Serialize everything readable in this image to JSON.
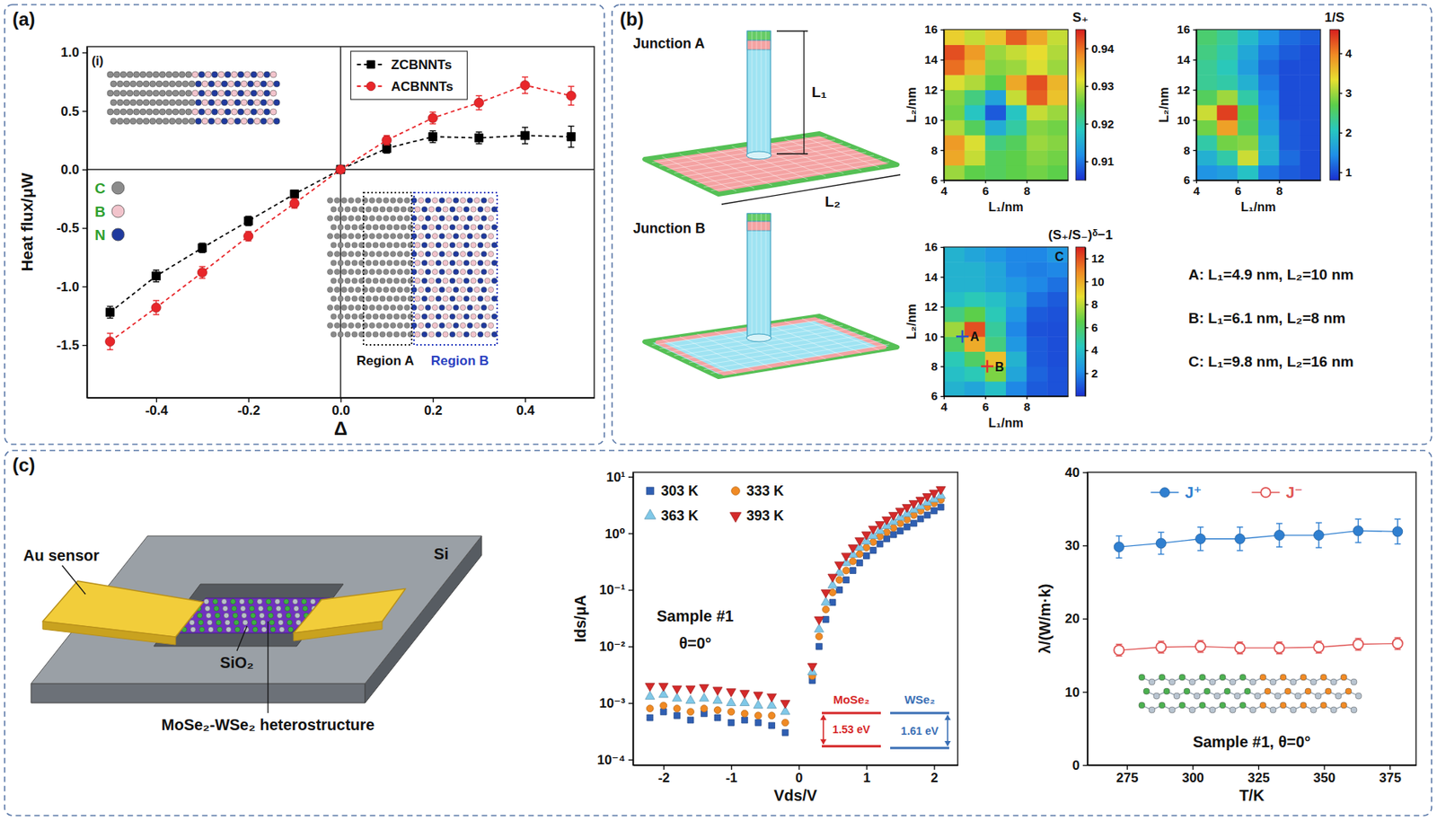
{
  "chart_data": [
    {
      "type": "line",
      "x_label": "Δ",
      "y_label": "Heat flux/μW",
      "x": [
        -0.5,
        -0.4,
        -0.3,
        -0.2,
        -0.1,
        0,
        0.1,
        0.2,
        0.3,
        0.4,
        0.5
      ],
      "series": [
        {
          "name": "ZCBNNTs",
          "color": "#000000",
          "marker": "square",
          "line_style": "dashed",
          "values": [
            -1.22,
            -0.91,
            -0.67,
            -0.44,
            -0.21,
            0,
            0.18,
            0.28,
            0.27,
            0.29,
            0.28
          ],
          "errors": [
            0.05,
            0.05,
            0.04,
            0.04,
            0.03,
            0.02,
            0.04,
            0.05,
            0.05,
            0.07,
            0.09
          ]
        },
        {
          "name": "ACBNNTs",
          "color": "#e8262a",
          "marker": "circle",
          "line_style": "dashed",
          "values": [
            -1.47,
            -1.18,
            -0.88,
            -0.57,
            -0.29,
            0,
            0.25,
            0.44,
            0.57,
            0.72,
            0.63
          ],
          "errors": [
            0.07,
            0.06,
            0.05,
            0.04,
            0.04,
            0.02,
            0.04,
            0.05,
            0.06,
            0.07,
            0.08
          ]
        }
      ],
      "xlim": [
        -0.55,
        0.55
      ],
      "ylim": [
        -1.95,
        1.05
      ],
      "xticks": [
        -0.4,
        -0.2,
        {
          "value": 0,
          "label": "0.0"
        },
        0.2,
        0.4
      ],
      "yticks": [
        -1.5,
        {
          "value": -1,
          "label": "-1.0"
        },
        -0.5,
        {
          "value": 0,
          "label": "0.0"
        },
        0.5,
        {
          "value": 1,
          "label": "1.0"
        }
      ],
      "reference_lines": {
        "x": 0,
        "y": 0
      },
      "legend": "top",
      "inset_labels": {
        "panel": "(i)",
        "atoms": [
          {
            "label": "C",
            "color": "#8c8c8c"
          },
          {
            "label": "B",
            "color": "#f2c4cc"
          },
          {
            "label": "N",
            "color": "#1f3a9e"
          }
        ],
        "regions": [
          "Region A",
          "Region B"
        ]
      }
    },
    {
      "type": "heatmap",
      "x_label": "L₁/nm",
      "y_label": "L₂/nm",
      "x_edges": [
        4,
        5,
        6,
        7,
        8,
        9,
        10
      ],
      "y_edges": [
        6,
        7,
        8,
        9,
        10,
        11,
        12,
        13,
        14,
        15,
        16
      ],
      "cells": [
        [
          0.928,
          0.925,
          0.924,
          0.925,
          0.926,
          0.925
        ],
        [
          0.936,
          0.93,
          0.924,
          0.925,
          0.927,
          0.926
        ],
        [
          0.937,
          0.931,
          0.922,
          0.924,
          0.928,
          0.927
        ],
        [
          0.929,
          0.924,
          0.915,
          0.92,
          0.927,
          0.926
        ],
        [
          0.926,
          0.918,
          0.908,
          0.918,
          0.93,
          0.928
        ],
        [
          0.927,
          0.922,
          0.914,
          0.93,
          0.941,
          0.934
        ],
        [
          0.931,
          0.929,
          0.925,
          0.936,
          0.942,
          0.935
        ],
        [
          0.94,
          0.935,
          0.927,
          0.928,
          0.931,
          0.928
        ],
        [
          0.942,
          0.937,
          0.928,
          0.93,
          0.932,
          0.929
        ],
        [
          0.933,
          0.93,
          0.934,
          0.941,
          0.936,
          0.93
        ]
      ],
      "xlim": [
        4,
        10
      ],
      "ylim": [
        6,
        16
      ],
      "xticks": [
        4,
        6,
        8
      ],
      "yticks": [
        6,
        8,
        10,
        12,
        14,
        16
      ],
      "colorbar": {
        "title": "S₊",
        "range": [
          0.905,
          0.945
        ],
        "ticks": [
          0.91,
          0.92,
          0.93,
          0.94
        ]
      }
    },
    {
      "type": "heatmap",
      "x_label": "L₁/nm",
      "y_label": "L₂/nm",
      "x_edges": [
        4,
        5,
        6,
        7,
        8,
        9,
        10
      ],
      "y_edges": [
        6,
        7,
        8,
        9,
        10,
        11,
        12,
        13,
        14,
        15,
        16
      ],
      "cells": [
        [
          1.5,
          1.6,
          2.0,
          1.3,
          1.1,
          1.0
        ],
        [
          1.8,
          2.2,
          3.2,
          1.8,
          1.2,
          1.0
        ],
        [
          2.2,
          2.8,
          2.9,
          1.8,
          1.1,
          1.0
        ],
        [
          2.8,
          3.8,
          2.6,
          1.6,
          1.1,
          1.0
        ],
        [
          3.2,
          4.4,
          2.7,
          1.5,
          1.0,
          1.0
        ],
        [
          2.6,
          3.0,
          2.2,
          1.4,
          1.0,
          1.0
        ],
        [
          2.3,
          2.2,
          1.8,
          1.3,
          1.0,
          1.0
        ],
        [
          2.3,
          2.1,
          1.6,
          1.2,
          1.0,
          1.0
        ],
        [
          2.4,
          2.2,
          1.7,
          1.3,
          1.1,
          1.0
        ],
        [
          2.5,
          2.3,
          1.9,
          1.5,
          1.2,
          1.1
        ]
      ],
      "xlim": [
        4,
        10
      ],
      "ylim": [
        6,
        16
      ],
      "xticks": [
        4,
        6,
        8
      ],
      "yticks": [
        6,
        8,
        10,
        12,
        14,
        16
      ],
      "colorbar": {
        "title": "1/S",
        "range": [
          0.8,
          4.6
        ],
        "ticks": [
          1,
          2,
          3,
          4
        ]
      }
    },
    {
      "type": "heatmap",
      "x_label": "L₁/nm",
      "y_label": "L₂/nm",
      "x_edges": [
        4,
        5,
        6,
        7,
        8,
        9,
        10
      ],
      "y_edges": [
        6,
        7,
        8,
        9,
        10,
        11,
        12,
        13,
        14,
        15,
        16
      ],
      "cells": [
        [
          3.5,
          3.0,
          4.0,
          2.0,
          1.0,
          0.8
        ],
        [
          4.0,
          4.5,
          7.0,
          3.0,
          1.2,
          0.8
        ],
        [
          4.5,
          6.0,
          9.5,
          3.5,
          1.0,
          0.7
        ],
        [
          6.0,
          10.0,
          5.5,
          2.5,
          1.0,
          0.7
        ],
        [
          7.5,
          12.0,
          5.0,
          2.0,
          0.8,
          0.7
        ],
        [
          5.5,
          6.5,
          4.5,
          2.5,
          1.0,
          0.8
        ],
        [
          4.0,
          4.5,
          4.0,
          3.0,
          1.5,
          1.0
        ],
        [
          3.5,
          3.5,
          3.0,
          2.5,
          2.0,
          1.5
        ],
        [
          3.5,
          3.5,
          3.0,
          2.0,
          1.8,
          2.0
        ],
        [
          3.5,
          3.0,
          2.5,
          2.0,
          2.0,
          2.5
        ]
      ],
      "xlim": [
        4,
        10
      ],
      "ylim": [
        6,
        16
      ],
      "xticks": [
        4,
        6,
        8
      ],
      "yticks": [
        6,
        8,
        10,
        12,
        14,
        16
      ],
      "colorbar": {
        "title": "(S₊/S₋)ᵟ−1",
        "range": [
          0,
          13
        ],
        "ticks": [
          2,
          4,
          6,
          8,
          10,
          12
        ]
      },
      "points": [
        {
          "label": "A",
          "x": 4.9,
          "y": 10,
          "marker": "plus",
          "color": "#3050c8"
        },
        {
          "label": "B",
          "x": 6.1,
          "y": 8,
          "marker": "plus",
          "color": "#e03030"
        },
        {
          "label": "C",
          "x": 9.8,
          "y": 16,
          "marker": "none",
          "color": "#000000"
        }
      ],
      "notes": [
        "A: L₁=4.9 nm, L₂=10 nm",
        "B: L₁=6.1 nm, L₂=8 nm",
        "C: L₁=9.8 nm, L₂=16 nm"
      ]
    },
    {
      "type": "scatter",
      "x_label": "Vds/V",
      "y_label": "Ids/μA",
      "log": "y",
      "x": [
        -2.2,
        -2.0,
        -1.8,
        -1.6,
        -1.4,
        -1.2,
        -1.0,
        -0.8,
        -0.6,
        -0.4,
        -0.2,
        0.2,
        0.3,
        0.4,
        0.5,
        0.6,
        0.7,
        0.8,
        0.9,
        1.0,
        1.1,
        1.2,
        1.3,
        1.4,
        1.5,
        1.6,
        1.7,
        1.8,
        1.9,
        2.0,
        2.1
      ],
      "series": [
        {
          "name": "303 K",
          "color": "#2f5fb3",
          "marker": "square",
          "values": [
            0.00055,
            0.0007,
            0.0006,
            0.0005,
            0.00065,
            0.00055,
            0.00045,
            0.0005,
            0.00045,
            0.0004,
            0.0003,
            0.0025,
            0.01,
            0.03,
            0.06,
            0.1,
            0.15,
            0.22,
            0.3,
            0.4,
            0.5,
            0.65,
            0.8,
            0.95,
            1.1,
            1.3,
            1.5,
            1.8,
            2.1,
            2.5,
            2.9
          ]
        },
        {
          "name": "333 K",
          "color": "#f08a24",
          "marker": "circle",
          "values": [
            0.0008,
            0.0009,
            0.0008,
            0.0007,
            0.0008,
            0.00075,
            0.0007,
            0.00065,
            0.0006,
            0.0006,
            0.00045,
            0.003,
            0.015,
            0.045,
            0.09,
            0.15,
            0.22,
            0.32,
            0.43,
            0.56,
            0.7,
            0.88,
            1.05,
            1.25,
            1.5,
            1.75,
            2.1,
            2.5,
            2.9,
            3.4,
            3.9
          ]
        },
        {
          "name": "363 K",
          "color": "#7fc8e8",
          "marker": "triangle-up",
          "values": [
            0.0013,
            0.0014,
            0.0012,
            0.0011,
            0.0012,
            0.0011,
            0.001,
            0.001,
            0.0009,
            0.0009,
            0.0007,
            0.0035,
            0.02,
            0.06,
            0.12,
            0.2,
            0.3,
            0.42,
            0.56,
            0.72,
            0.9,
            1.1,
            1.35,
            1.6,
            1.9,
            2.2,
            2.6,
            3.0,
            3.5,
            4.0,
            4.6
          ]
        },
        {
          "name": "393 K",
          "color": "#d42a2a",
          "marker": "triangle-down",
          "values": [
            0.002,
            0.002,
            0.0018,
            0.0018,
            0.0019,
            0.0017,
            0.0016,
            0.0015,
            0.0014,
            0.0013,
            0.001,
            0.0045,
            0.03,
            0.09,
            0.17,
            0.28,
            0.4,
            0.56,
            0.75,
            0.95,
            1.2,
            1.45,
            1.75,
            2.1,
            2.5,
            2.9,
            3.4,
            3.9,
            4.5,
            5.2,
            6.0
          ]
        }
      ],
      "xlim": [
        -2.45,
        2.35
      ],
      "ylim": [
        8e-05,
        12
      ],
      "xticks": [
        -2,
        -1,
        0,
        1,
        2
      ],
      "yticks": [
        {
          "value": 0.0001,
          "label": "10⁻⁴"
        },
        {
          "value": 0.001,
          "label": "10⁻³"
        },
        {
          "value": 0.01,
          "label": "10⁻²"
        },
        {
          "value": 0.1,
          "label": "10⁻¹"
        },
        {
          "value": 1,
          "label": "10⁰"
        },
        {
          "value": 10,
          "label": "10¹"
        }
      ],
      "legend": "top left",
      "annotations": [
        "Sample #1",
        "θ=0°"
      ],
      "band_inset": [
        {
          "material": "MoSe₂",
          "gap": 1.53,
          "gap_label": "1.53 eV",
          "color": "#d62728"
        },
        {
          "material": "WSe₂",
          "gap": 1.61,
          "gap_label": "1.61 eV",
          "color": "#3a6fb5"
        }
      ]
    },
    {
      "type": "scatter",
      "x_label": "T/K",
      "y_label": "λ/(W/m·k)",
      "x": [
        272,
        288,
        303,
        318,
        333,
        348,
        363,
        378
      ],
      "series": [
        {
          "name": "J⁺",
          "color": "#2f7fd0",
          "marker": "circle",
          "line_style": "solid",
          "values": [
            29.8,
            30.3,
            30.9,
            30.9,
            31.4,
            31.4,
            32.0,
            31.9
          ],
          "errors": [
            1.5,
            1.5,
            1.6,
            1.6,
            1.6,
            1.7,
            1.6,
            1.7
          ]
        },
        {
          "name": "J⁻",
          "color": "#e05555",
          "marker": "open-circle",
          "line_style": "solid",
          "values": [
            15.7,
            16.1,
            16.2,
            16.0,
            16.0,
            16.1,
            16.5,
            16.6
          ],
          "errors": [
            0.8,
            0.8,
            0.8,
            0.8,
            0.8,
            0.8,
            0.8,
            0.8
          ]
        }
      ],
      "xlim": [
        260,
        385
      ],
      "ylim": [
        0,
        40
      ],
      "xticks": [
        275,
        300,
        325,
        350,
        375
      ],
      "yticks": [
        0,
        10,
        20,
        30,
        40
      ],
      "legend": "top",
      "annotations": [
        "Sample #1, θ=0°"
      ]
    }
  ],
  "figure": {
    "panel_labels": [
      "(a)",
      "(b)",
      "(c)"
    ],
    "junctions": {
      "labels": [
        "Junction A",
        "Junction B"
      ],
      "dimensions": [
        "L₁",
        "L₂"
      ]
    },
    "device": {
      "labels": [
        "Au sensor",
        "Si",
        "SiO₂",
        "MoSe₂-WSe₂ heterostructure"
      ]
    }
  }
}
